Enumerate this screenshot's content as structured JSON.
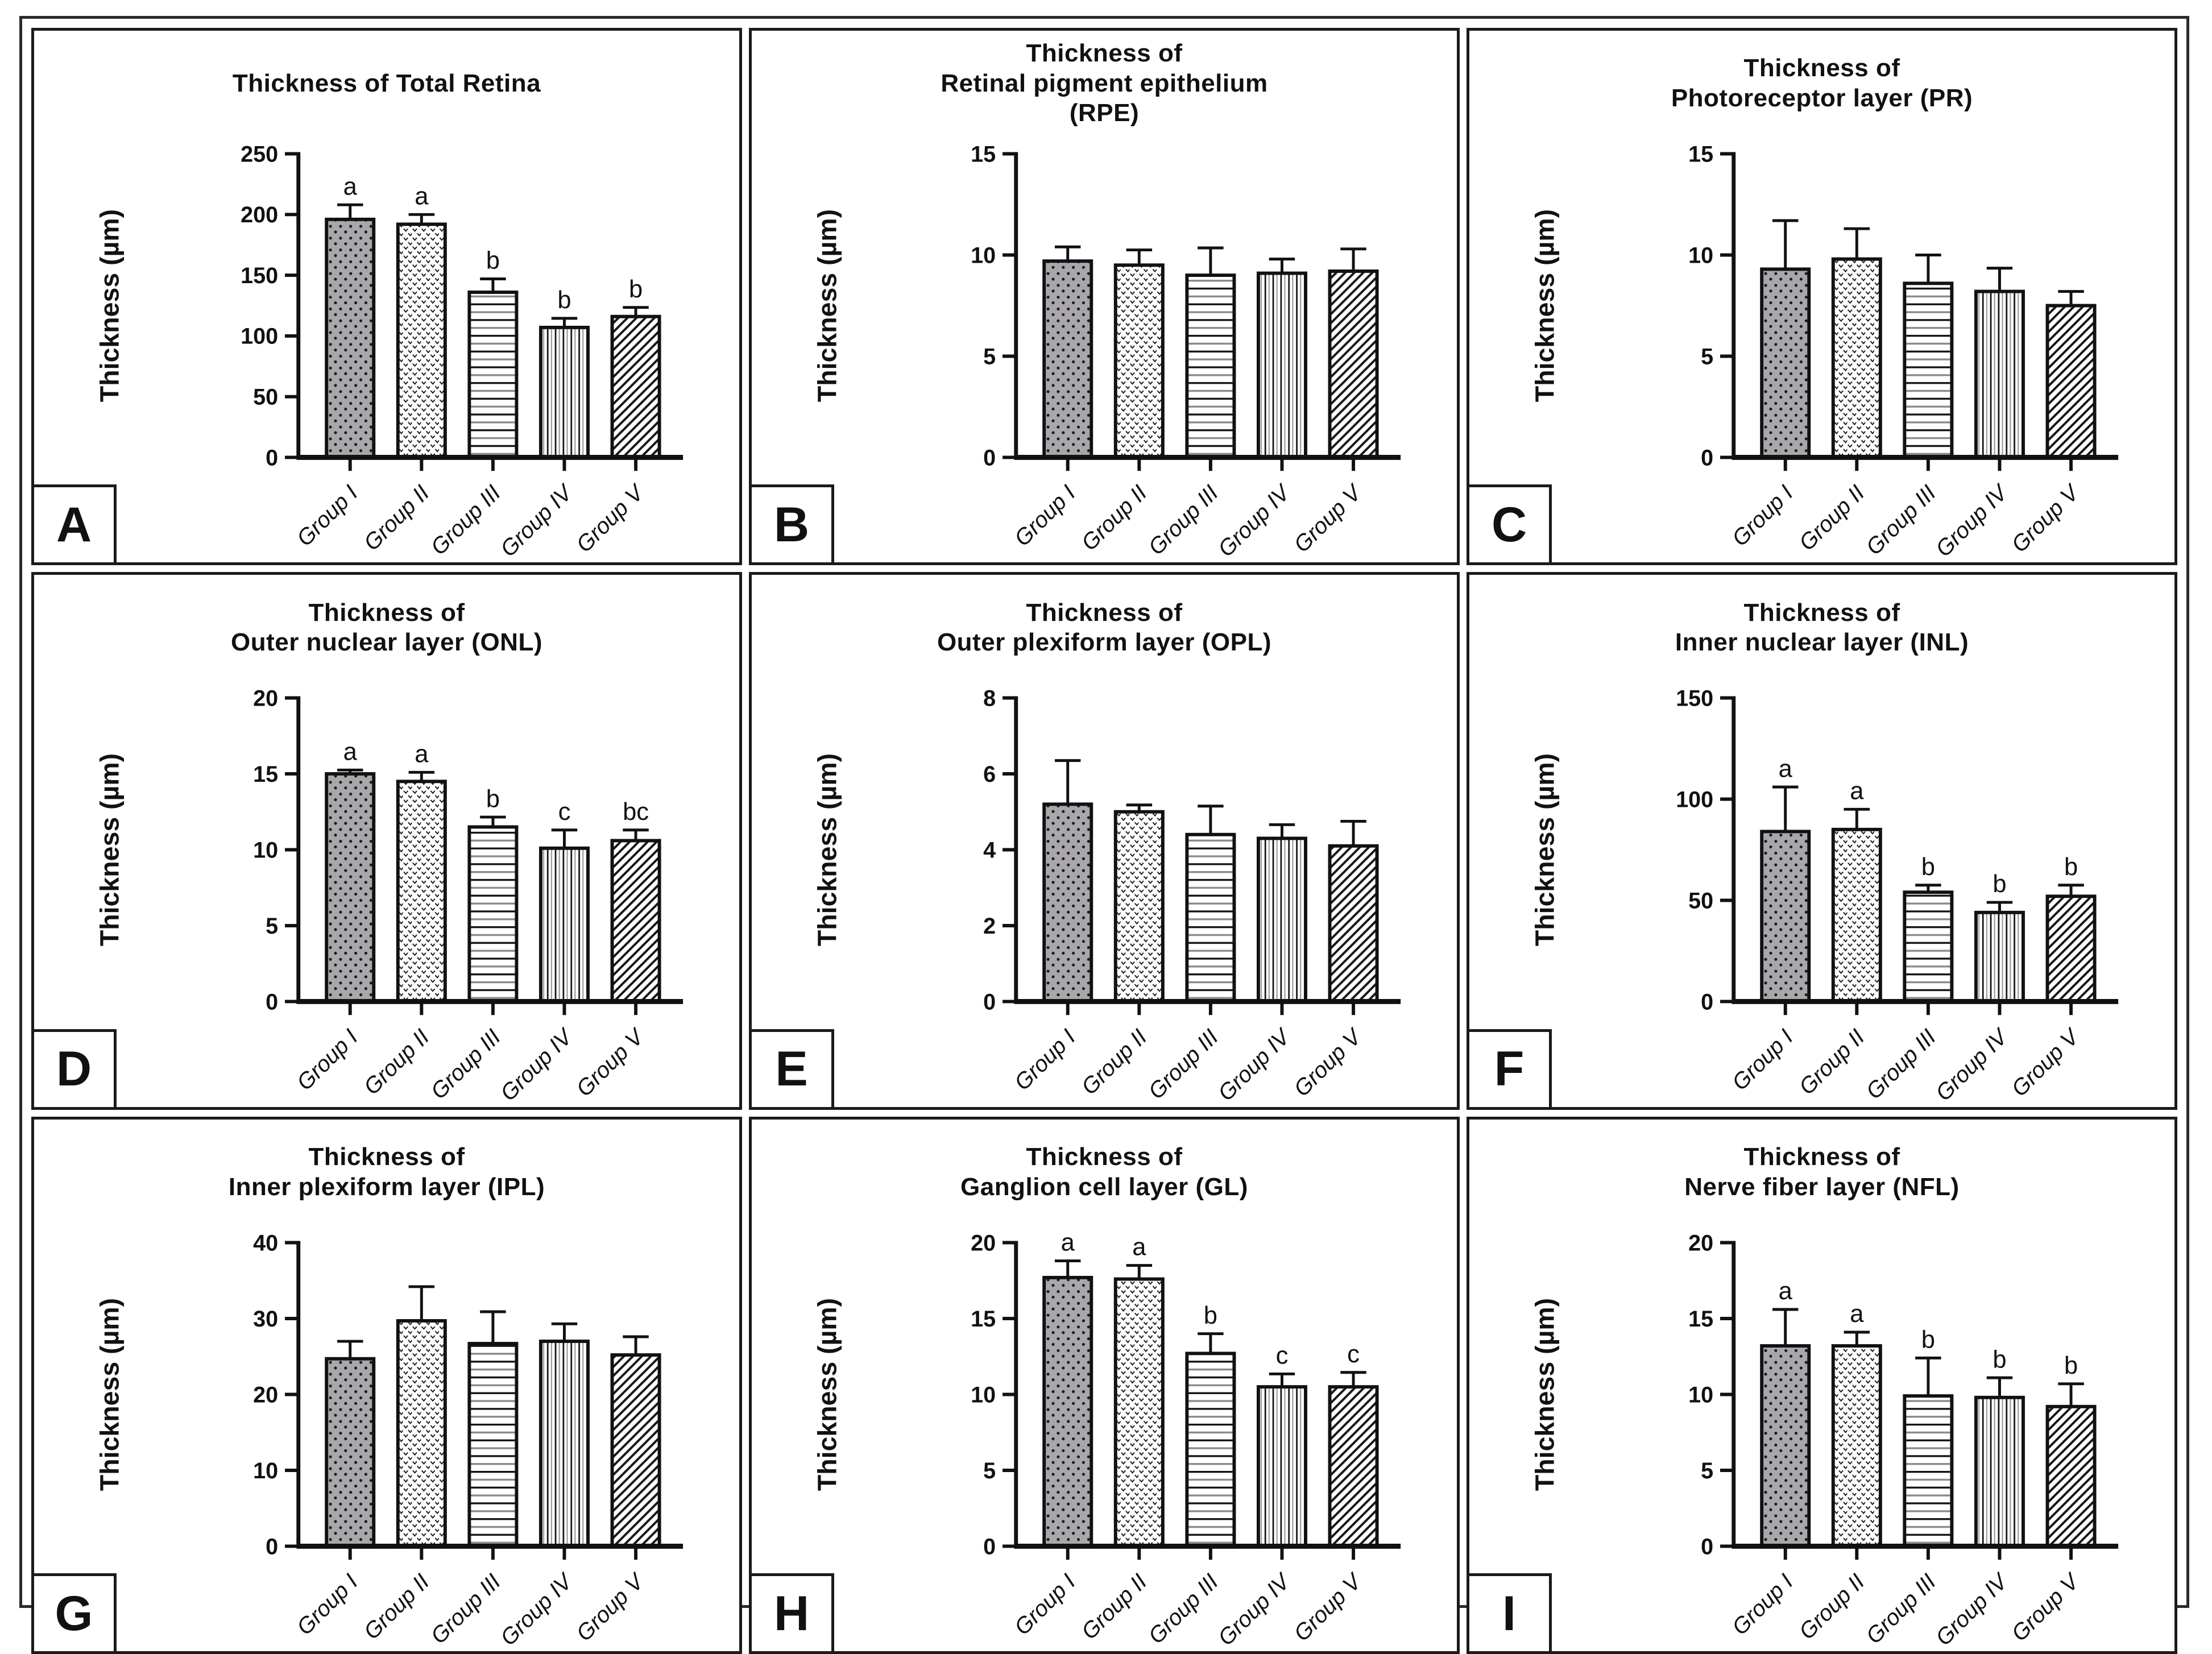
{
  "figure": {
    "background": "#ffffff",
    "ink": "#1a1a1a",
    "bar_gray": "#a9a7ac"
  },
  "chart_data": {
    "type": "bar",
    "shared_ylabel": "Thickness (µm)",
    "categories": [
      "Group I",
      "Group II",
      "Group III",
      "Group IV",
      "Group V"
    ],
    "bar_patterns": [
      "gray-dotted",
      "speckle-weave",
      "horizontal-lines",
      "vertical-lines",
      "diagonal-lines"
    ],
    "error_bars": "upper SD whisker with cap",
    "legend_position": "none",
    "grid": false,
    "charts": [
      {
        "panel": "A",
        "title_lines": [
          "Thickness of Total Retina"
        ],
        "ylabel": "Thickness (µm)",
        "ylim": [
          0,
          250
        ],
        "ystep": 50,
        "values": [
          196,
          192,
          136,
          107,
          116
        ],
        "errors": [
          12,
          8,
          11,
          7.5,
          7.5
        ],
        "letters": [
          "a",
          "a",
          "b",
          "b",
          "b"
        ]
      },
      {
        "panel": "B",
        "title_lines": [
          "Thickness of",
          "Retinal pigment epithelium",
          "(RPE)"
        ],
        "ylabel": "Thickness (µm)",
        "ylim": [
          0,
          15
        ],
        "ystep": 5,
        "values": [
          9.7,
          9.5,
          9.0,
          9.1,
          9.2
        ],
        "errors": [
          0.7,
          0.75,
          1.35,
          0.7,
          1.1
        ],
        "letters": null
      },
      {
        "panel": "C",
        "title_lines": [
          "Thickness of",
          "Photoreceptor layer (PR)"
        ],
        "ylabel": "Thickness (µm)",
        "ylim": [
          0,
          15
        ],
        "ystep": 5,
        "values": [
          9.3,
          9.8,
          8.6,
          8.2,
          7.5
        ],
        "errors": [
          2.4,
          1.5,
          1.4,
          1.15,
          0.7
        ],
        "letters": null
      },
      {
        "panel": "D",
        "title_lines": [
          "Thickness of",
          "Outer nuclear layer (ONL)"
        ],
        "ylabel": "Thickness (µm)",
        "ylim": [
          0,
          20
        ],
        "ystep": 5,
        "values": [
          15.0,
          14.5,
          11.5,
          10.1,
          10.6
        ],
        "errors": [
          0.25,
          0.6,
          0.65,
          1.2,
          0.7
        ],
        "letters": [
          "a",
          "a",
          "b",
          "c",
          "bc"
        ]
      },
      {
        "panel": "E",
        "title_lines": [
          "Thickness of",
          "Outer plexiform layer (OPL)"
        ],
        "ylabel": "Thickness (µm)",
        "ylim": [
          0,
          8
        ],
        "ystep": 2,
        "values": [
          5.2,
          5.0,
          4.4,
          4.3,
          4.1
        ],
        "errors": [
          1.15,
          0.18,
          0.75,
          0.36,
          0.65
        ],
        "letters": null
      },
      {
        "panel": "F",
        "title_lines": [
          "Thickness of",
          "Inner nuclear layer (INL)"
        ],
        "ylabel": "Thickness (µm)",
        "ylim": [
          0,
          150
        ],
        "ystep": 50,
        "values": [
          84,
          85,
          54,
          44,
          52
        ],
        "errors": [
          22,
          10,
          3.5,
          5,
          5.5
        ],
        "letters": [
          "a",
          "a",
          "b",
          "b",
          "b"
        ]
      },
      {
        "panel": "G",
        "title_lines": [
          "Thickness of",
          "Inner plexiform layer (IPL)"
        ],
        "ylabel": "Thickness (µm)",
        "ylim": [
          0,
          40
        ],
        "ystep": 10,
        "values": [
          24.7,
          29.7,
          26.7,
          27.0,
          25.2
        ],
        "errors": [
          2.3,
          4.5,
          4.2,
          2.3,
          2.4
        ],
        "letters": null
      },
      {
        "panel": "H",
        "title_lines": [
          "Thickness of",
          "Ganglion cell layer (GL)"
        ],
        "ylabel": "Thickness (µm)",
        "ylim": [
          0,
          20
        ],
        "ystep": 5,
        "values": [
          17.7,
          17.6,
          12.7,
          10.5,
          10.5
        ],
        "errors": [
          1.1,
          0.9,
          1.3,
          0.85,
          0.95
        ],
        "letters": [
          "a",
          "a",
          "b",
          "c",
          "c"
        ]
      },
      {
        "panel": "I",
        "title_lines": [
          "Thickness of",
          "Nerve fiber layer (NFL)"
        ],
        "ylabel": "Thickness (µm)",
        "ylim": [
          0,
          20
        ],
        "ystep": 5,
        "values": [
          13.2,
          13.2,
          9.9,
          9.8,
          9.2
        ],
        "errors": [
          2.4,
          0.9,
          2.5,
          1.3,
          1.5
        ],
        "letters": [
          "a",
          "a",
          "b",
          "b",
          "b"
        ]
      }
    ]
  }
}
